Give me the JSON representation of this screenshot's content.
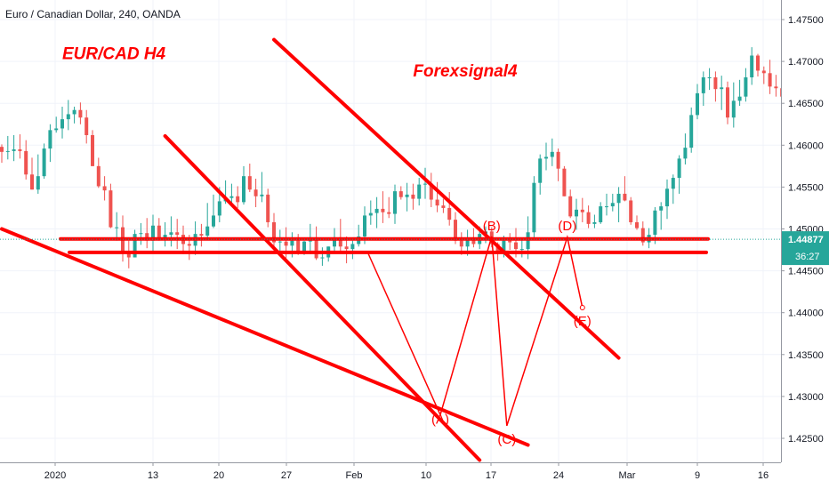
{
  "header": {
    "symbol_line": "Euro / Canadian Dollar, 240, OANDA"
  },
  "colors": {
    "up": "#26a69a",
    "down": "#ef5350",
    "drawing": "#ff0000",
    "axis_text": "#131722",
    "grid": "#f0f3fa"
  },
  "chart_data": {
    "type": "candlestick",
    "title": "Euro / Canadian Dollar, 240, OANDA",
    "ylim": [
      1.4215,
      1.4775
    ],
    "y_ticks": [
      "1.47500",
      "1.47000",
      "1.46500",
      "1.46000",
      "1.45500",
      "1.45000",
      "1.44500",
      "1.44000",
      "1.43500",
      "1.43000",
      "1.42500"
    ],
    "x_ticks": [
      "2020",
      "13",
      "20",
      "27",
      "Feb",
      "10",
      "17",
      "24",
      "Mar",
      "9",
      "16"
    ],
    "price_badge": {
      "value": 1.44877,
      "label": "1.44877",
      "countdown": "36:27",
      "color": "#26a69a"
    },
    "candles": [
      [
        1.4598,
        1.4601,
        1.4579,
        1.4592
      ],
      [
        1.4592,
        1.4611,
        1.4583,
        1.4593
      ],
      [
        1.4593,
        1.4612,
        1.4581,
        1.4595
      ],
      [
        1.4595,
        1.4613,
        1.4584,
        1.4593
      ],
      [
        1.4593,
        1.4606,
        1.4559,
        1.4565
      ],
      [
        1.4565,
        1.4585,
        1.4547,
        1.4547
      ],
      [
        1.4547,
        1.4589,
        1.4542,
        1.4563
      ],
      [
        1.4563,
        1.4602,
        1.456,
        1.4596
      ],
      [
        1.4596,
        1.4625,
        1.458,
        1.4618
      ],
      [
        1.4618,
        1.4634,
        1.4615,
        1.462
      ],
      [
        1.462,
        1.4646,
        1.4608,
        1.4631
      ],
      [
        1.4631,
        1.4654,
        1.4618,
        1.4637
      ],
      [
        1.4637,
        1.4646,
        1.4626,
        1.4642
      ],
      [
        1.4642,
        1.4651,
        1.4625,
        1.4633
      ],
      [
        1.4633,
        1.4642,
        1.4602,
        1.4612
      ],
      [
        1.4612,
        1.4618,
        1.4575,
        1.4575
      ],
      [
        1.4575,
        1.4585,
        1.4549,
        1.4551
      ],
      [
        1.4551,
        1.4563,
        1.4534,
        1.4546
      ],
      [
        1.4546,
        1.4554,
        1.4501,
        1.4502
      ],
      [
        1.4502,
        1.452,
        1.4486,
        1.4502
      ],
      [
        1.4502,
        1.4516,
        1.4461,
        1.4473
      ],
      [
        1.4473,
        1.4486,
        1.4453,
        1.4466
      ],
      [
        1.4466,
        1.4499,
        1.4466,
        1.4494
      ],
      [
        1.4494,
        1.4507,
        1.4481,
        1.4495
      ],
      [
        1.4495,
        1.4513,
        1.4477,
        1.4486
      ],
      [
        1.4486,
        1.4517,
        1.4473,
        1.4504
      ],
      [
        1.4504,
        1.4513,
        1.4486,
        1.4487
      ],
      [
        1.4487,
        1.4508,
        1.4479,
        1.4493
      ],
      [
        1.4493,
        1.4515,
        1.4479,
        1.4496
      ],
      [
        1.4496,
        1.4512,
        1.4476,
        1.4493
      ],
      [
        1.4493,
        1.4504,
        1.447,
        1.4482
      ],
      [
        1.4482,
        1.4493,
        1.4463,
        1.448
      ],
      [
        1.448,
        1.4509,
        1.4469,
        1.4494
      ],
      [
        1.4494,
        1.4506,
        1.4479,
        1.4492
      ],
      [
        1.4492,
        1.4531,
        1.4487,
        1.4503
      ],
      [
        1.4503,
        1.4541,
        1.4501,
        1.4516
      ],
      [
        1.4516,
        1.455,
        1.4508,
        1.4533
      ],
      [
        1.4533,
        1.4558,
        1.453,
        1.4537
      ],
      [
        1.4537,
        1.4554,
        1.4531,
        1.4539
      ],
      [
        1.4539,
        1.4551,
        1.4525,
        1.4532
      ],
      [
        1.4532,
        1.4575,
        1.4529,
        1.4563
      ],
      [
        1.4563,
        1.4578,
        1.4544,
        1.4547
      ],
      [
        1.4547,
        1.456,
        1.4526,
        1.4539
      ],
      [
        1.4539,
        1.4568,
        1.4532,
        1.4541
      ],
      [
        1.4541,
        1.4548,
        1.4502,
        1.4508
      ],
      [
        1.4508,
        1.4519,
        1.4479,
        1.4484
      ],
      [
        1.4484,
        1.4499,
        1.447,
        1.4485
      ],
      [
        1.4485,
        1.4502,
        1.4465,
        1.448
      ],
      [
        1.448,
        1.4496,
        1.4466,
        1.4486
      ],
      [
        1.4486,
        1.4494,
        1.4469,
        1.4472
      ],
      [
        1.4472,
        1.4486,
        1.4469,
        1.4485
      ],
      [
        1.4485,
        1.4506,
        1.447,
        1.449
      ],
      [
        1.449,
        1.4503,
        1.4463,
        1.4465
      ],
      [
        1.4465,
        1.4478,
        1.4456,
        1.4466
      ],
      [
        1.4466,
        1.4479,
        1.4461,
        1.4479
      ],
      [
        1.4479,
        1.4501,
        1.4473,
        1.449
      ],
      [
        1.449,
        1.4512,
        1.4473,
        1.4479
      ],
      [
        1.4479,
        1.4491,
        1.4459,
        1.4476
      ],
      [
        1.4476,
        1.4486,
        1.4464,
        1.4482
      ],
      [
        1.4482,
        1.4505,
        1.4479,
        1.4491
      ],
      [
        1.4491,
        1.4527,
        1.4482,
        1.4516
      ],
      [
        1.4516,
        1.4534,
        1.4505,
        1.4519
      ],
      [
        1.4519,
        1.4538,
        1.4501,
        1.4524
      ],
      [
        1.4524,
        1.4545,
        1.4507,
        1.452
      ],
      [
        1.452,
        1.4538,
        1.4513,
        1.4518
      ],
      [
        1.4518,
        1.4553,
        1.4506,
        1.4545
      ],
      [
        1.4545,
        1.4551,
        1.4535,
        1.4538
      ],
      [
        1.4538,
        1.4555,
        1.4521,
        1.4541
      ],
      [
        1.4541,
        1.4554,
        1.4523,
        1.4536
      ],
      [
        1.4536,
        1.4561,
        1.4528,
        1.4553
      ],
      [
        1.4553,
        1.4573,
        1.4536,
        1.4554
      ],
      [
        1.4554,
        1.4567,
        1.4526,
        1.4535
      ],
      [
        1.4535,
        1.4556,
        1.452,
        1.4528
      ],
      [
        1.4528,
        1.4536,
        1.4519,
        1.4525
      ],
      [
        1.4525,
        1.4544,
        1.4504,
        1.4511
      ],
      [
        1.4511,
        1.452,
        1.4482,
        1.4486
      ],
      [
        1.4486,
        1.4496,
        1.4469,
        1.4479
      ],
      [
        1.4479,
        1.4499,
        1.4468,
        1.4488
      ],
      [
        1.4488,
        1.4501,
        1.4478,
        1.4482
      ],
      [
        1.4482,
        1.4503,
        1.4476,
        1.4494
      ],
      [
        1.4494,
        1.4503,
        1.4483,
        1.4497
      ],
      [
        1.4497,
        1.4502,
        1.4478,
        1.4482
      ],
      [
        1.4482,
        1.4484,
        1.4462,
        1.4473
      ],
      [
        1.4473,
        1.4492,
        1.4466,
        1.4486
      ],
      [
        1.4486,
        1.4495,
        1.4475,
        1.4484
      ],
      [
        1.4484,
        1.4501,
        1.4466,
        1.4476
      ],
      [
        1.4476,
        1.4489,
        1.4466,
        1.4476
      ],
      [
        1.4476,
        1.4515,
        1.4464,
        1.4496
      ],
      [
        1.4496,
        1.4563,
        1.4489,
        1.4555
      ],
      [
        1.4555,
        1.4589,
        1.4541,
        1.4584
      ],
      [
        1.4584,
        1.4603,
        1.457,
        1.4586
      ],
      [
        1.4586,
        1.4608,
        1.4575,
        1.4592
      ],
      [
        1.4592,
        1.4596,
        1.4557,
        1.4572
      ],
      [
        1.4572,
        1.4575,
        1.4539,
        1.4539
      ],
      [
        1.4539,
        1.4547,
        1.4513,
        1.4515
      ],
      [
        1.4515,
        1.4536,
        1.4499,
        1.4523
      ],
      [
        1.4523,
        1.4537,
        1.4508,
        1.452
      ],
      [
        1.452,
        1.4528,
        1.4501,
        1.4506
      ],
      [
        1.4506,
        1.4517,
        1.4501,
        1.4508
      ],
      [
        1.4508,
        1.4532,
        1.4506,
        1.4527
      ],
      [
        1.4527,
        1.4542,
        1.4516,
        1.4527
      ],
      [
        1.4527,
        1.4542,
        1.4521,
        1.4531
      ],
      [
        1.4531,
        1.455,
        1.4508,
        1.4542
      ],
      [
        1.4542,
        1.4563,
        1.4533,
        1.4534
      ],
      [
        1.4534,
        1.4538,
        1.4505,
        1.4508
      ],
      [
        1.4508,
        1.4516,
        1.4499,
        1.4501
      ],
      [
        1.4501,
        1.4509,
        1.448,
        1.4484
      ],
      [
        1.4484,
        1.4501,
        1.4477,
        1.4493
      ],
      [
        1.4493,
        1.4526,
        1.4482,
        1.4522
      ],
      [
        1.4522,
        1.4532,
        1.4499,
        1.4527
      ],
      [
        1.4527,
        1.4559,
        1.4512,
        1.4548
      ],
      [
        1.4548,
        1.4565,
        1.453,
        1.4561
      ],
      [
        1.4561,
        1.4588,
        1.4542,
        1.4584
      ],
      [
        1.4584,
        1.4614,
        1.4577,
        1.4597
      ],
      [
        1.4597,
        1.4645,
        1.4591,
        1.4636
      ],
      [
        1.4636,
        1.4673,
        1.4631,
        1.4662
      ],
      [
        1.4662,
        1.4688,
        1.4647,
        1.4681
      ],
      [
        1.4681,
        1.4692,
        1.4666,
        1.4681
      ],
      [
        1.4681,
        1.4688,
        1.4652,
        1.4667
      ],
      [
        1.4667,
        1.4683,
        1.4642,
        1.4669
      ],
      [
        1.4669,
        1.4676,
        1.4625,
        1.4633
      ],
      [
        1.4633,
        1.4675,
        1.4621,
        1.4653
      ],
      [
        1.4653,
        1.4678,
        1.4647,
        1.4658
      ],
      [
        1.4658,
        1.4692,
        1.4652,
        1.4681
      ],
      [
        1.4681,
        1.4717,
        1.4672,
        1.4707
      ],
      [
        1.4707,
        1.4709,
        1.4682,
        1.4689
      ],
      [
        1.4689,
        1.4694,
        1.4673,
        1.4686
      ],
      [
        1.4686,
        1.4702,
        1.4661,
        1.467
      ],
      [
        1.467,
        1.4684,
        1.4658,
        1.4668
      ],
      [
        1.4668,
        1.4679,
        1.4643,
        1.4658
      ],
      [
        1.4658,
        1.468,
        1.4654,
        1.4666
      ],
      [
        1.4666,
        1.4686,
        1.4653,
        1.4663
      ],
      [
        1.4663,
        1.4674,
        1.4612,
        1.4628
      ],
      [
        1.4628,
        1.4636,
        1.4598,
        1.4608
      ],
      [
        1.4608,
        1.4641,
        1.4604,
        1.4625
      ],
      [
        1.4625,
        1.4641,
        1.4608,
        1.462
      ],
      [
        1.462,
        1.4627,
        1.4597,
        1.4605
      ],
      [
        1.4605,
        1.4618,
        1.4595,
        1.4607
      ],
      [
        1.4607,
        1.4636,
        1.4604,
        1.4619
      ],
      [
        1.4619,
        1.4631,
        1.4581,
        1.4584
      ],
      [
        1.4584,
        1.4591,
        1.4574,
        1.4583
      ],
      [
        1.4583,
        1.4595,
        1.4567,
        1.4577
      ],
      [
        1.4577,
        1.4592,
        1.4567,
        1.4578
      ],
      [
        1.4578,
        1.4602,
        1.4569,
        1.4593
      ],
      [
        1.4593,
        1.4611,
        1.4576,
        1.4577
      ],
      [
        1.4577,
        1.4593,
        1.4554,
        1.4572
      ],
      [
        1.4572,
        1.4577,
        1.4553,
        1.4556
      ],
      [
        1.4556,
        1.4575,
        1.4546,
        1.4573
      ],
      [
        1.4573,
        1.4576,
        1.4538,
        1.4546
      ],
      [
        1.4546,
        1.4564,
        1.4526,
        1.4527
      ],
      [
        1.4527,
        1.4554,
        1.4509,
        1.4528
      ],
      [
        1.4528,
        1.4542,
        1.4506,
        1.4522
      ],
      [
        1.4522,
        1.454,
        1.451,
        1.4527
      ],
      [
        1.4527,
        1.4535,
        1.4493,
        1.4497
      ],
      [
        1.4497,
        1.4518,
        1.4487,
        1.451
      ],
      [
        1.451,
        1.4523,
        1.4486,
        1.4488
      ],
      [
        1.4488,
        1.4505,
        1.4483,
        1.4497
      ],
      [
        1.4497,
        1.4513,
        1.4474,
        1.4475
      ],
      [
        1.4475,
        1.4483,
        1.4464,
        1.4472
      ],
      [
        1.4472,
        1.4481,
        1.4415,
        1.4426
      ],
      [
        1.4426,
        1.4437,
        1.4401,
        1.4416
      ],
      [
        1.4416,
        1.4438,
        1.4398,
        1.441
      ],
      [
        1.441,
        1.4433,
        1.44,
        1.4408
      ],
      [
        1.4408,
        1.4412,
        1.4382,
        1.439
      ],
      [
        1.439,
        1.4409,
        1.4372,
        1.4376
      ],
      [
        1.4376,
        1.4398,
        1.4369,
        1.4386
      ],
      [
        1.4386,
        1.4397,
        1.4371,
        1.4373
      ],
      [
        1.4373,
        1.4377,
        1.4358,
        1.4368
      ],
      [
        1.4368,
        1.4383,
        1.4354,
        1.4369
      ],
      [
        1.4369,
        1.4383,
        1.4355,
        1.4358
      ],
      [
        1.4358,
        1.4382,
        1.4349,
        1.4362
      ],
      [
        1.4362,
        1.4371,
        1.4338,
        1.4344
      ],
      [
        1.4344,
        1.4365,
        1.4343,
        1.4349
      ],
      [
        1.4349,
        1.4365,
        1.4336,
        1.4338
      ],
      [
        1.4338,
        1.4352,
        1.4331,
        1.4349
      ],
      [
        1.4349,
        1.4352,
        1.4324,
        1.4324
      ],
      [
        1.4324,
        1.4334,
        1.431,
        1.4322
      ],
      [
        1.4322,
        1.4345,
        1.4309,
        1.4326
      ],
      [
        1.4326,
        1.4331,
        1.4304,
        1.4309
      ],
      [
        1.4309,
        1.4311,
        1.4286,
        1.4291
      ],
      [
        1.4291,
        1.4305,
        1.4289,
        1.4293
      ],
      [
        1.4293,
        1.4298,
        1.4274,
        1.4286
      ],
      [
        1.4286,
        1.4304,
        1.4279,
        1.43
      ],
      [
        1.43,
        1.4314,
        1.4291,
        1.4306
      ],
      [
        1.4306,
        1.4331,
        1.4297,
        1.4325
      ],
      [
        1.4325,
        1.4333,
        1.4302,
        1.4317
      ],
      [
        1.4317,
        1.4326,
        1.4295,
        1.4305
      ],
      [
        1.4305,
        1.433,
        1.4301,
        1.4322
      ],
      [
        1.4322,
        1.4353,
        1.431,
        1.4338
      ],
      [
        1.4338,
        1.4361,
        1.4325,
        1.4352
      ],
      [
        1.4352,
        1.4387,
        1.4342,
        1.4376
      ],
      [
        1.4376,
        1.4394,
        1.4358,
        1.4382
      ],
      [
        1.4382,
        1.4405,
        1.4368,
        1.4397
      ],
      [
        1.4397,
        1.4435,
        1.4384,
        1.4427
      ],
      [
        1.4427,
        1.4449,
        1.4411,
        1.4435
      ],
      [
        1.4435,
        1.4452,
        1.4415,
        1.4434
      ],
      [
        1.4434,
        1.4449,
        1.4394,
        1.4401
      ],
      [
        1.4401,
        1.4454,
        1.4384,
        1.4445
      ],
      [
        1.4445,
        1.4467,
        1.4428,
        1.4448
      ],
      [
        1.4448,
        1.4469,
        1.4438,
        1.4456
      ],
      [
        1.4456,
        1.4468,
        1.4418,
        1.4425
      ],
      [
        1.4425,
        1.4499,
        1.4419,
        1.4488
      ]
    ],
    "horizontal_lines": [
      {
        "name": "resistance",
        "y": 1.4488
      },
      {
        "name": "support",
        "y": 1.4472
      }
    ],
    "trendlines": [
      {
        "name": "upper-descending",
        "from": [
          45.0,
          1.4726
        ],
        "to": [
          102.0,
          1.4346
        ]
      },
      {
        "name": "middle-descending",
        "from": [
          27.0,
          1.4611
        ],
        "to": [
          79.0,
          1.4224
        ]
      },
      {
        "name": "lower-descending",
        "from": [
          0.0,
          1.45
        ],
        "to": [
          87.0,
          1.4242
        ]
      }
    ],
    "wave_path": [
      [
        60.5,
        1.4472
      ],
      [
        72.5,
        1.4278
      ],
      [
        81.0,
        1.4491
      ],
      [
        83.5,
        1.4265
      ],
      [
        93.5,
        1.449
      ],
      [
        96.0,
        1.4406
      ]
    ],
    "wave_labels": [
      {
        "text": "(A)",
        "x": 72.5,
        "y": 1.4274
      },
      {
        "text": "(B)",
        "x": 81.0,
        "y": 1.4505
      },
      {
        "text": "(C)",
        "x": 83.5,
        "y": 1.425
      },
      {
        "text": "(D)",
        "x": 93.5,
        "y": 1.4505
      },
      {
        "text": "(E)",
        "x": 96.0,
        "y": 1.4391
      }
    ],
    "annotations": [
      {
        "text": "EUR/CAD H4",
        "x": 10.0,
        "y": 1.4703
      },
      {
        "text": "Forexsignal4",
        "x": 68.0,
        "y": 1.4682
      }
    ]
  }
}
